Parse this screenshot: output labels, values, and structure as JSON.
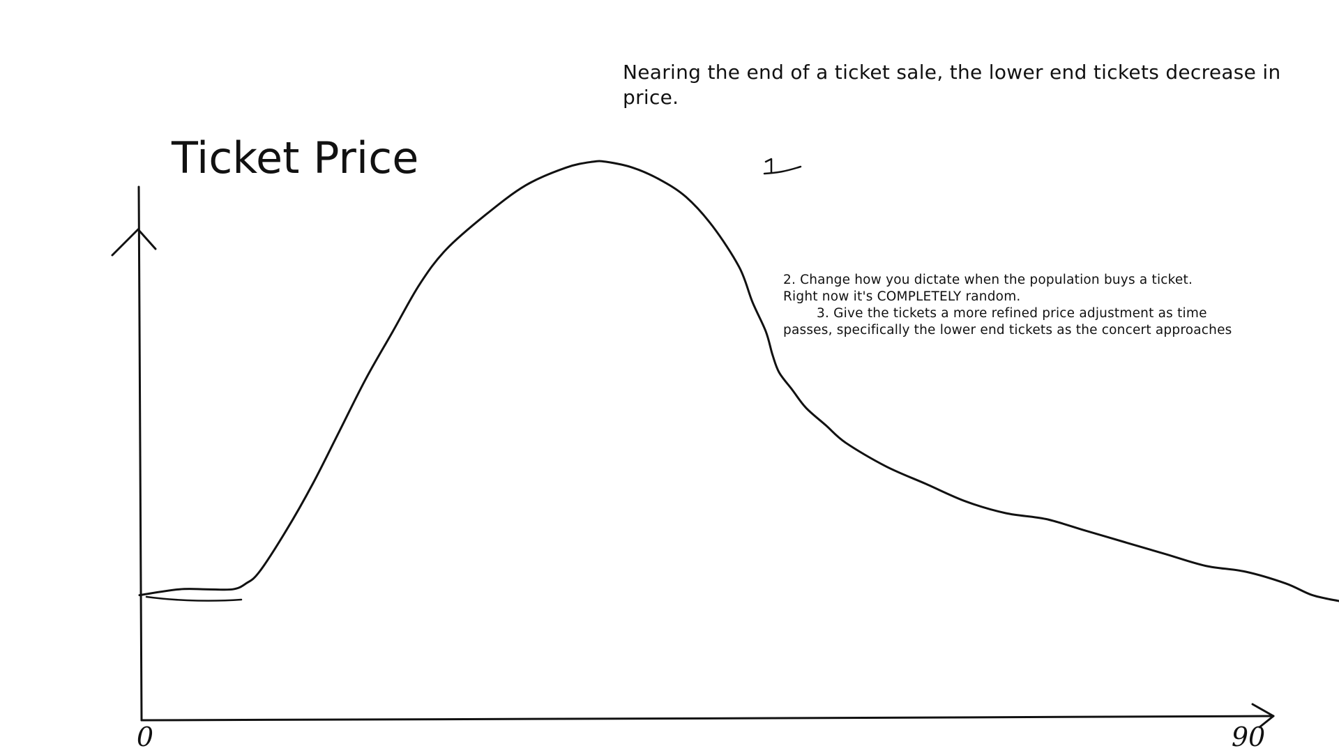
{
  "chart_data": {
    "type": "line",
    "title": "Ticket Price",
    "xlabel": "",
    "ylabel": "",
    "x_ticks": [
      "0",
      "90"
    ],
    "xlim": [
      0,
      90
    ],
    "ylim": [
      0,
      100
    ],
    "grid": false,
    "series": [
      {
        "x": [
          0,
          3,
          5,
          7,
          8,
          9,
          11,
          13,
          15,
          17,
          19,
          21,
          23,
          26,
          29,
          32,
          34,
          35,
          37,
          39,
          41,
          43,
          45,
          46,
          47,
          47.5,
          48,
          49,
          50,
          51.5,
          53,
          56,
          59,
          62,
          65,
          68,
          71,
          74,
          77,
          80,
          83,
          86,
          88,
          90
        ],
        "y": [
          21,
          22,
          22,
          22,
          23,
          25,
          32,
          40,
          49,
          58,
          66,
          74,
          80,
          86,
          91,
          94,
          95,
          95,
          94,
          92,
          89,
          84,
          77,
          71,
          66,
          62,
          59,
          56,
          53,
          50,
          47,
          43,
          40,
          37,
          35,
          34,
          32,
          30,
          28,
          26,
          25,
          23,
          21,
          20
        ]
      }
    ]
  },
  "annotations": {
    "main_note": "Nearing the end of a ticket sale, the lower end tickets decrease in price.",
    "mark": "1",
    "note_lines": [
      "2. Change how you dictate when the population buys a ticket.",
      "Right now it's COMPLETELY random.",
      "3. Give the tickets a more refined price adjustment as time",
      "passes, specifically the lower end tickets as the concert approaches"
    ]
  },
  "colors": {
    "ink": "#111111",
    "background": "#ffffff"
  }
}
